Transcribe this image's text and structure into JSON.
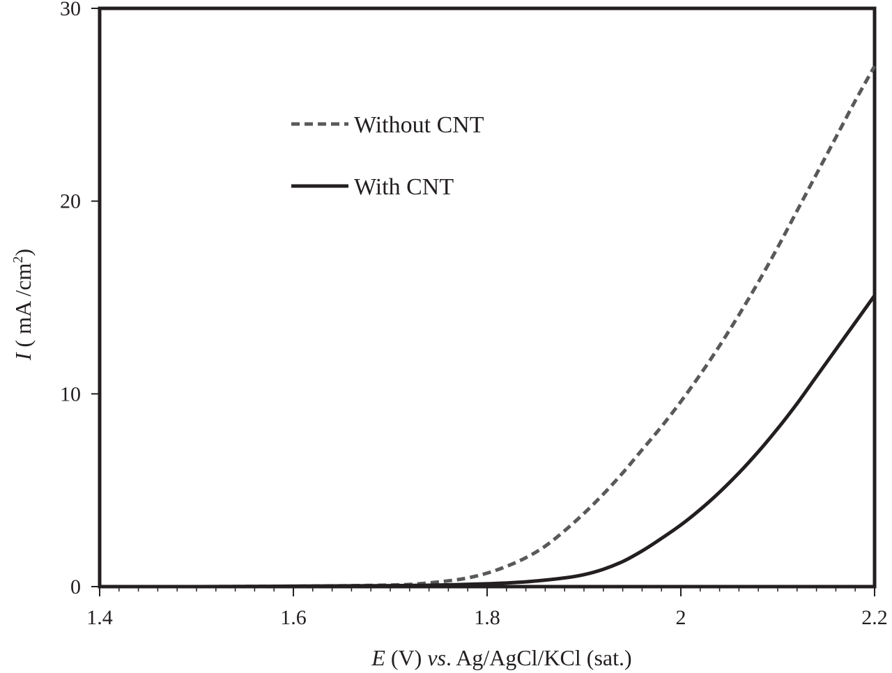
{
  "chart_data": {
    "type": "line",
    "title": "",
    "xlabel": {
      "italic_part": "E",
      "plain_part": " (V) ",
      "italic_part2": "vs",
      "plain_part2": ". Ag/AgCl/KCl (sat.)"
    },
    "ylabel": {
      "italic_part": "I",
      "plain_part": " ( mA /cm",
      "superscript": "2",
      "close": ")"
    },
    "xlim": [
      1.4,
      2.2
    ],
    "ylim": [
      0,
      30
    ],
    "x_ticks": [
      "1.4",
      "1.6",
      "1.8",
      "2",
      "2.2"
    ],
    "y_ticks": [
      "0",
      "10",
      "20",
      "30"
    ],
    "grid": false,
    "legend_position": "upper-left-inside",
    "series": [
      {
        "name": "Without CNT",
        "style": "dashed",
        "color": "#595959",
        "x": [
          1.4,
          1.5,
          1.6,
          1.7,
          1.73,
          1.76,
          1.78,
          1.8,
          1.82,
          1.84,
          1.86,
          1.88,
          1.9,
          1.92,
          1.94,
          1.96,
          1.98,
          2.0,
          2.02,
          2.04,
          2.06,
          2.08,
          2.1,
          2.12,
          2.14,
          2.16,
          2.18,
          2.2
        ],
        "y": [
          0.0,
          0.0,
          0.02,
          0.08,
          0.15,
          0.3,
          0.45,
          0.7,
          1.05,
          1.5,
          2.1,
          2.9,
          3.8,
          4.8,
          5.9,
          7.1,
          8.3,
          9.6,
          11.0,
          12.5,
          14.1,
          15.8,
          17.6,
          19.5,
          21.4,
          23.3,
          25.2,
          27.0
        ]
      },
      {
        "name": "With CNT",
        "style": "solid",
        "color": "#231f20",
        "x": [
          1.4,
          1.5,
          1.6,
          1.7,
          1.75,
          1.8,
          1.84,
          1.88,
          1.9,
          1.92,
          1.94,
          1.96,
          1.98,
          2.0,
          2.02,
          2.04,
          2.06,
          2.08,
          2.1,
          2.12,
          2.14,
          2.16,
          2.18,
          2.2
        ],
        "y": [
          0.0,
          0.0,
          0.02,
          0.05,
          0.08,
          0.15,
          0.25,
          0.45,
          0.62,
          0.9,
          1.3,
          1.85,
          2.5,
          3.2,
          4.0,
          4.9,
          5.9,
          7.0,
          8.2,
          9.5,
          10.9,
          12.3,
          13.7,
          15.1
        ]
      }
    ]
  }
}
